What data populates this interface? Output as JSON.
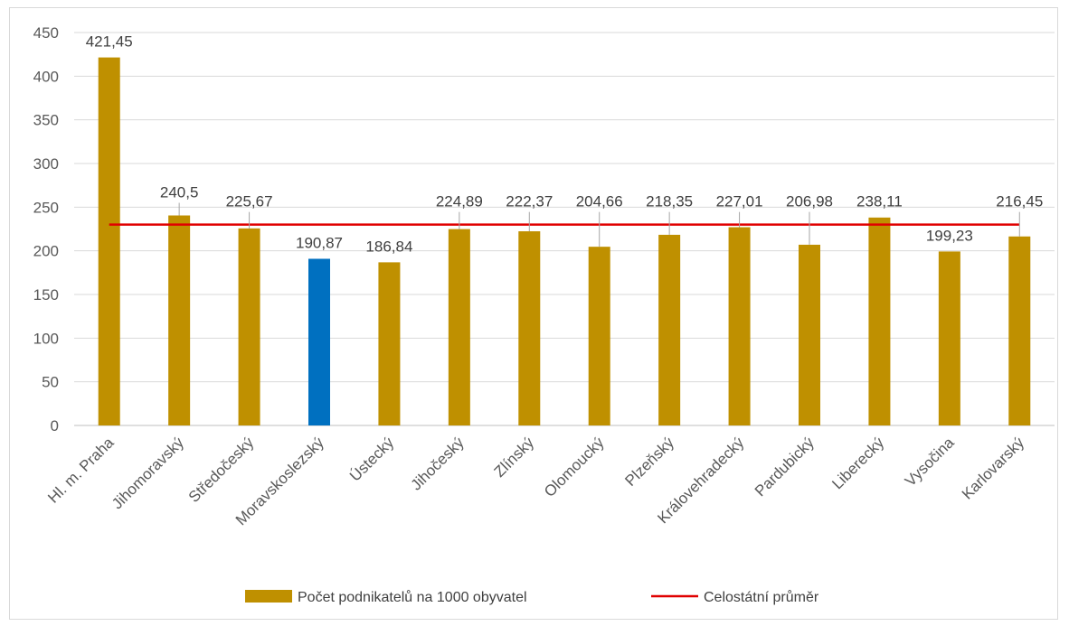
{
  "chart_data": {
    "type": "bar",
    "categories": [
      "Hl. m. Praha",
      "Jihomoravský",
      "Středočeský",
      "Moravskoslezský",
      "Ústecký",
      "Jihočeský",
      "Zlínský",
      "Olomoucký",
      "Plzeňský",
      "Královehradecký",
      "Pardubický",
      "Liberecký",
      "Vysočina",
      "Karlovarský"
    ],
    "series": [
      {
        "name": "Počet podnikatelů na 1000 obyvatel",
        "values": [
          421.45,
          240.5,
          225.67,
          190.87,
          186.84,
          224.89,
          222.37,
          204.66,
          218.35,
          227.01,
          206.98,
          238.11,
          199.23,
          216.45
        ],
        "labels": [
          "421,45",
          "240,5",
          "225,67",
          "190,87",
          "186,84",
          "224,89",
          "222,37",
          "204,66",
          "218,35",
          "227,01",
          "206,98",
          "238,11",
          "199,23",
          "216,45"
        ],
        "color": "#bf9000",
        "highlight_color": "#0070c0",
        "highlight_index": 3
      }
    ],
    "reference_line": {
      "name": "Celostátní průměr",
      "value": 230,
      "color": "#e00000"
    },
    "yticks": [
      0,
      50,
      100,
      150,
      200,
      250,
      300,
      350,
      400,
      450
    ],
    "ylim": [
      0,
      450
    ],
    "grid": true,
    "legend": "bottom",
    "title": "",
    "xlabel": "",
    "ylabel": ""
  }
}
